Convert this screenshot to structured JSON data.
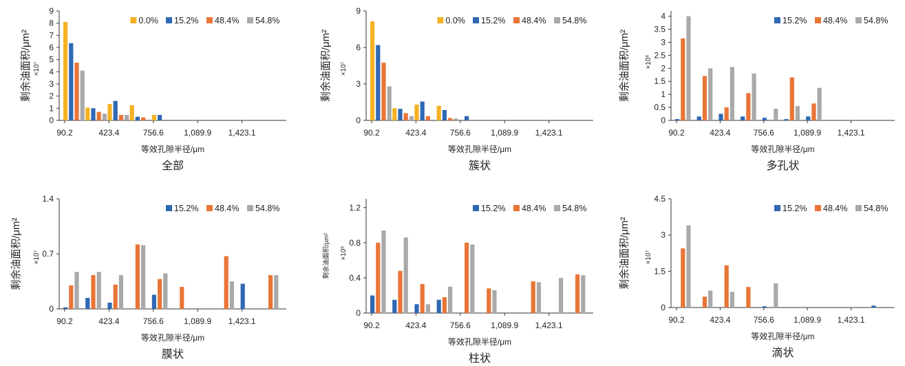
{
  "colors": {
    "0.0%": "#f4b223",
    "15.2%": "#2f68b3",
    "48.4%": "#e97537",
    "54.8%": "#a9a9a9"
  },
  "chart_data": [
    {
      "type": "bar",
      "caption": "全部",
      "xlabel": "等效孔隙半径/μm",
      "ylabel": "剩余油面积/μm²",
      "exponent": "×10⁷",
      "x_ticks": [
        "90.2",
        "423.4",
        "756.6",
        "1,089.9",
        "1,423.1"
      ],
      "y_ticks": [
        "0",
        "1",
        "2",
        "3",
        "4",
        "5",
        "6",
        "7",
        "8",
        "9"
      ],
      "ylim": [
        0,
        9
      ],
      "legend": [
        "0.0%",
        "15.2%",
        "48.4%",
        "54.8%"
      ],
      "bin_centers": [
        90.2,
        256.8,
        423.4,
        590,
        756.6,
        923.2,
        1089.9,
        1256.5,
        1423.1,
        1589.7
      ],
      "series": [
        {
          "name": "0.0%",
          "values": [
            8.1,
            1.05,
            1.35,
            1.25,
            0.45,
            0,
            0,
            0,
            0,
            0
          ]
        },
        {
          "name": "15.2%",
          "values": [
            6.35,
            1.0,
            1.6,
            0.3,
            0.45,
            0,
            0,
            0,
            0,
            0
          ]
        },
        {
          "name": "48.4%",
          "values": [
            4.75,
            0.7,
            0.45,
            0.25,
            0,
            0,
            0,
            0,
            0,
            0
          ]
        },
        {
          "name": "54.8%",
          "values": [
            4.1,
            0.55,
            0.45,
            0,
            0,
            0,
            0,
            0,
            0,
            0
          ]
        }
      ]
    },
    {
      "type": "bar",
      "caption": "簇状",
      "xlabel": "等效孔隙半径/μm",
      "ylabel": "剩余油面积/μm²",
      "exponent": "×10⁷",
      "x_ticks": [
        "90.2",
        "423.4",
        "756.6",
        "1,089.9",
        "1,423.1"
      ],
      "y_ticks": [
        "0",
        "3",
        "6",
        "9"
      ],
      "ylim": [
        0,
        9
      ],
      "legend": [
        "0.0%",
        "15.2%",
        "48.4%",
        "54.8%"
      ],
      "bin_centers": [
        90.2,
        256.8,
        423.4,
        590,
        756.6,
        923.2,
        1089.9,
        1256.5,
        1423.1,
        1589.7
      ],
      "series": [
        {
          "name": "0.0%",
          "values": [
            8.15,
            1.0,
            1.3,
            1.2,
            0,
            0,
            0,
            0,
            0,
            0
          ]
        },
        {
          "name": "15.2%",
          "values": [
            6.2,
            0.95,
            1.55,
            0.85,
            0.35,
            0,
            0,
            0,
            0,
            0
          ]
        },
        {
          "name": "48.4%",
          "values": [
            4.75,
            0.6,
            0.35,
            0.2,
            0,
            0,
            0,
            0,
            0,
            0
          ]
        },
        {
          "name": "54.8%",
          "values": [
            2.8,
            0.35,
            0,
            0.15,
            0,
            0,
            0,
            0,
            0,
            0
          ]
        }
      ]
    },
    {
      "type": "bar",
      "caption": "多孔状",
      "xlabel": "等效孔隙半径/μm",
      "ylabel": "剩余油面积/μm²",
      "exponent": "×10⁶",
      "x_ticks": [
        "90.2",
        "423.4",
        "756.6",
        "1,089.9",
        "1,423.1"
      ],
      "y_ticks": [
        "0",
        "0.5",
        "1",
        "1.5",
        "2",
        "2.5",
        "3",
        "3.5",
        "4"
      ],
      "ylim": [
        0,
        4.2
      ],
      "legend": [
        "15.2%",
        "48.4%",
        "54.8%"
      ],
      "bin_centers": [
        90.2,
        256.8,
        423.4,
        590,
        756.6,
        923.2,
        1089.9,
        1256.5,
        1423.1,
        1589.7
      ],
      "series": [
        {
          "name": "15.2%",
          "values": [
            0.05,
            0.15,
            0.25,
            0.15,
            0.1,
            0.05,
            0.15,
            0,
            0,
            0
          ]
        },
        {
          "name": "48.4%",
          "values": [
            3.15,
            1.7,
            0.5,
            1.05,
            0,
            1.65,
            0.65,
            0,
            0,
            0
          ]
        },
        {
          "name": "54.8%",
          "values": [
            4.0,
            2.0,
            2.05,
            1.8,
            0.45,
            0.55,
            1.25,
            0,
            0,
            0
          ]
        }
      ]
    },
    {
      "type": "bar",
      "caption": "膜状",
      "xlabel": "等效孔隙半径/μm",
      "ylabel": "剩余油面积/μm²",
      "exponent": "×10⁷",
      "x_ticks": [
        "90.2",
        "423.4",
        "756.6",
        "1,089.9",
        "1,423.1"
      ],
      "y_ticks": [
        "0",
        "0.7",
        "1.4"
      ],
      "ylim": [
        0,
        1.4
      ],
      "legend": [
        "15.2%",
        "48.4%",
        "54.8%"
      ],
      "bin_centers": [
        90.2,
        256.8,
        423.4,
        590,
        756.6,
        923.2,
        1089.9,
        1256.5,
        1423.1,
        1589.7
      ],
      "series": [
        {
          "name": "15.2%",
          "values": [
            0.02,
            0.14,
            0.08,
            0,
            0.18,
            0,
            0,
            0,
            0.32,
            0
          ]
        },
        {
          "name": "48.4%",
          "values": [
            0.3,
            0.43,
            0.31,
            0.82,
            0.38,
            0.28,
            0,
            0.67,
            0,
            0.43
          ]
        },
        {
          "name": "54.8%",
          "values": [
            0.47,
            0.47,
            0.43,
            0.81,
            0.45,
            0,
            0,
            0.35,
            0,
            0.43
          ]
        }
      ]
    },
    {
      "type": "bar",
      "caption": "柱状",
      "xlabel": "等效孔隙半径/μm",
      "ylabel": "剩余油面积/μm²",
      "exponent": "×10⁶",
      "x_ticks": [
        "90.2",
        "423.4",
        "756.6",
        "1,089.9",
        "1,423.1"
      ],
      "y_ticks": [
        "0",
        "0.4",
        "0.8",
        "1.2"
      ],
      "ylim": [
        0,
        1.3
      ],
      "legend": [
        "15.2%",
        "48.4%",
        "54.8%"
      ],
      "bin_centers": [
        90.2,
        256.8,
        423.4,
        590,
        756.6,
        923.2,
        1089.9,
        1256.5,
        1423.1,
        1589.7
      ],
      "series": [
        {
          "name": "15.2%",
          "values": [
            0.2,
            0.15,
            0.1,
            0.15,
            0,
            0,
            0,
            0,
            0,
            0
          ]
        },
        {
          "name": "48.4%",
          "values": [
            0.8,
            0.48,
            0.33,
            0.18,
            0.8,
            0.28,
            0,
            0.36,
            0,
            0.44
          ]
        },
        {
          "name": "54.8%",
          "values": [
            0.94,
            0.86,
            0.1,
            0.3,
            0.78,
            0.26,
            0,
            0.35,
            0.4,
            0.43
          ]
        }
      ]
    },
    {
      "type": "bar",
      "caption": "滴状",
      "xlabel": "等效孔隙半径/μm",
      "ylabel": "剩余油面积/μm²",
      "exponent": "×10⁷",
      "x_ticks": [
        "90.2",
        "423.4",
        "756.6",
        "1,089.9",
        "1,423.1"
      ],
      "y_ticks": [
        "0",
        "1.5",
        "3",
        "4.5"
      ],
      "ylim": [
        0,
        4.5
      ],
      "legend": [
        "15.2%",
        "48.4%",
        "54.8%"
      ],
      "bin_centers": [
        90.2,
        256.8,
        423.4,
        590,
        756.6,
        923.2,
        1089.9,
        1256.5,
        1423.1,
        1589.7
      ],
      "series": [
        {
          "name": "15.2%",
          "values": [
            0,
            0,
            0,
            0,
            0.05,
            0,
            0,
            0,
            0,
            0.08
          ]
        },
        {
          "name": "48.4%",
          "values": [
            2.45,
            0.45,
            1.75,
            0.85,
            0,
            0,
            0,
            0,
            0,
            0
          ]
        },
        {
          "name": "54.8%",
          "values": [
            3.4,
            0.7,
            0.65,
            0,
            1.0,
            0,
            0,
            0,
            0,
            0
          ]
        }
      ]
    }
  ]
}
